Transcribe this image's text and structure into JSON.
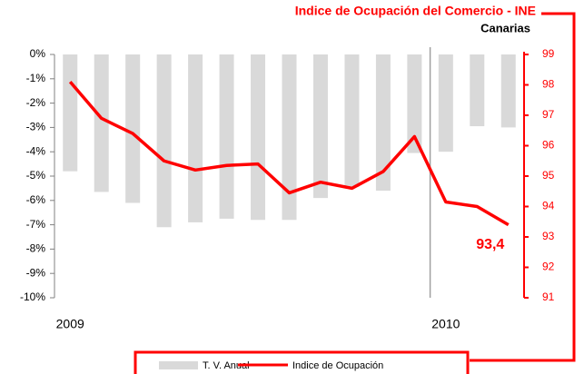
{
  "chart_data": {
    "type": "bar",
    "title": "Indice de Ocupación del Comercio - INE",
    "subtitle": "Canarias",
    "categories": [
      "2009",
      null,
      null,
      null,
      null,
      null,
      null,
      null,
      null,
      null,
      null,
      null,
      "2010",
      null,
      null
    ],
    "series": [
      {
        "name": "T. V. Anual",
        "type": "bar",
        "color": "#d9d9d9",
        "values": [
          -4.8,
          -5.65,
          -6.1,
          -7.1,
          -6.9,
          -6.75,
          -6.8,
          -6.8,
          -5.9,
          -5.45,
          -5.6,
          -4.05,
          -4.0,
          -2.95,
          -3.0
        ]
      },
      {
        "name": "Indice de Ocupación",
        "type": "line",
        "color": "#ff0000",
        "axis": "y2",
        "values": [
          98.1,
          96.9,
          96.4,
          95.5,
          95.2,
          95.35,
          95.4,
          94.45,
          94.8,
          94.6,
          95.15,
          96.3,
          94.15,
          94.0,
          93.4
        ],
        "value_labels": [
          null,
          null,
          null,
          null,
          null,
          null,
          null,
          null,
          null,
          null,
          null,
          null,
          null,
          null,
          "93,4"
        ]
      }
    ],
    "ylim": [
      -10,
      0
    ],
    "yticks": [
      {
        "value": 0,
        "label": "0%"
      },
      {
        "value": -1,
        "label": "-1%"
      },
      {
        "value": -2,
        "label": "-2%"
      },
      {
        "value": -3,
        "label": "-3%"
      },
      {
        "value": -4,
        "label": "-4%"
      },
      {
        "value": -5,
        "label": "-5%"
      },
      {
        "value": -6,
        "label": "-6%"
      },
      {
        "value": -7,
        "label": "-7%"
      },
      {
        "value": -8,
        "label": "-8%"
      },
      {
        "value": -9,
        "label": "-9%"
      },
      {
        "value": -10,
        "label": "-10%"
      }
    ],
    "y2lim": [
      91,
      99
    ],
    "y2ticks": [
      91,
      92,
      93,
      94,
      95,
      96,
      97,
      98,
      99
    ],
    "y2color": "#ff0000"
  }
}
